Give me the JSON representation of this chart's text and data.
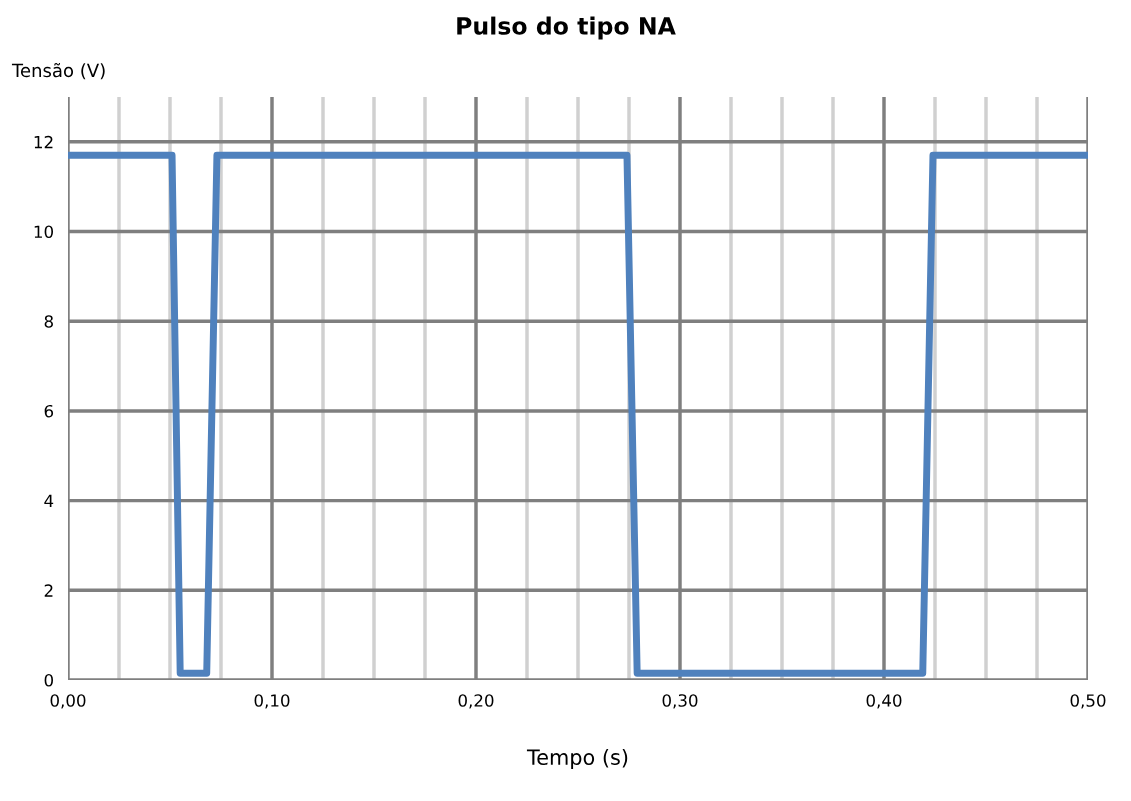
{
  "chart_data": {
    "type": "line",
    "title": "Pulso do tipo NA",
    "xlabel": "Tempo (s)",
    "ylabel": "Tensão (V)",
    "series": [
      {
        "color": "#4f81bd",
        "x": [
          0,
          0.051,
          0.055,
          0.068,
          0.073,
          0.274,
          0.279,
          0.419,
          0.424,
          0.5
        ],
        "values": [
          11.7,
          11.7,
          0.15,
          0.15,
          11.7,
          11.7,
          0.15,
          0.15,
          11.7,
          11.7
        ]
      }
    ],
    "xlim": [
      0,
      0.5
    ],
    "ylim": [
      0,
      13
    ],
    "xticks": [
      {
        "value": 0,
        "label": "0,00"
      },
      {
        "value": 0.025,
        "label": null
      },
      {
        "value": 0.05,
        "label": null
      },
      {
        "value": 0.075,
        "label": null
      },
      {
        "value": 0.1,
        "label": "0,10"
      },
      {
        "value": 0.125,
        "label": null
      },
      {
        "value": 0.15,
        "label": null
      },
      {
        "value": 0.175,
        "label": null
      },
      {
        "value": 0.2,
        "label": "0,20"
      },
      {
        "value": 0.225,
        "label": null
      },
      {
        "value": 0.25,
        "label": null
      },
      {
        "value": 0.275,
        "label": null
      },
      {
        "value": 0.3,
        "label": "0,30"
      },
      {
        "value": 0.325,
        "label": null
      },
      {
        "value": 0.35,
        "label": null
      },
      {
        "value": 0.375,
        "label": null
      },
      {
        "value": 0.4,
        "label": "0,40"
      },
      {
        "value": 0.425,
        "label": null
      },
      {
        "value": 0.45,
        "label": null
      },
      {
        "value": 0.475,
        "label": null
      },
      {
        "value": 0.5,
        "label": "0,50"
      }
    ],
    "yticks": [
      0,
      2,
      4,
      6,
      8,
      10,
      12
    ],
    "grid": true,
    "legend": false,
    "marker": "none",
    "line_style": "solid"
  }
}
